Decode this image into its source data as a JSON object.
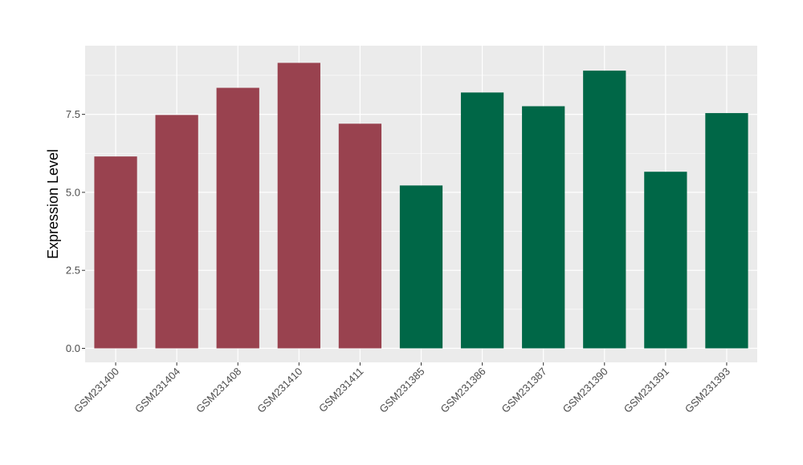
{
  "chart_data": {
    "type": "bar",
    "title": "",
    "xlabel": "",
    "ylabel": "Expression Level",
    "ylim": [
      -0.45,
      9.7
    ],
    "yticks": [
      0.0,
      2.5,
      5.0,
      7.5
    ],
    "ytick_labels": [
      "0.0",
      "2.5",
      "5.0",
      "7.5"
    ],
    "grid": true,
    "legend": "none",
    "categories": [
      "GSM231400",
      "GSM231404",
      "GSM231408",
      "GSM231410",
      "GSM231411",
      "GSM231385",
      "GSM231386",
      "GSM231387",
      "GSM231390",
      "GSM231391",
      "GSM231393"
    ],
    "values": [
      6.15,
      7.48,
      8.35,
      9.15,
      7.2,
      5.22,
      8.2,
      7.76,
      8.9,
      5.66,
      7.54
    ],
    "bar_colors": [
      "#99424f",
      "#99424f",
      "#99424f",
      "#99424f",
      "#99424f",
      "#006747",
      "#006747",
      "#006747",
      "#006747",
      "#006747",
      "#006747"
    ],
    "panel_background": "#ebebeb",
    "grid_color": "#ffffff"
  }
}
